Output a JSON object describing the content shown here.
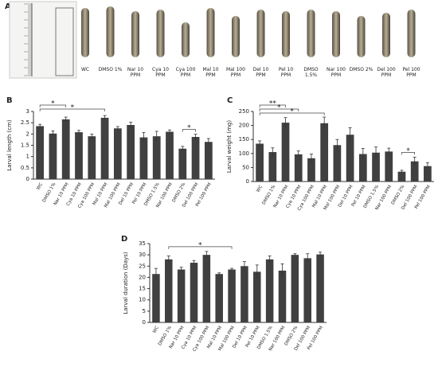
{
  "panel_a": {
    "label": "A",
    "larvae": [
      "WC",
      "DMSO 1%",
      "Nar 10 PPM",
      "Cya 10 PPM",
      "Cya 100 PPM",
      "Mal 10 PPM",
      "Mal 100 PPM",
      "Del 10 PPM",
      "Pel 10 PPM",
      "DMSO 1.5%",
      "Nar 100 PPM",
      "DMSO 2%",
      "Del 100 PPM",
      "Pel 100 PPM"
    ]
  },
  "chart_data": [
    {
      "type": "bar",
      "panel": "B",
      "ylabel": "Larval length (cm)",
      "color": "#404040",
      "categories": [
        "WC",
        "DMSO 1%",
        "Nar 10 PPM",
        "Cya 10 PPM",
        "Cya 100 PPM",
        "Mal 10 PPM",
        "Mal 100 PPM",
        "Del 10 PPM",
        "Pel 10 PPM",
        "DMSO 1.5%",
        "Nar 100 PPM",
        "DMSO 2%",
        "Del 100 PPM",
        "Pel 100 PPM"
      ],
      "values": [
        2.35,
        2.02,
        2.65,
        2.08,
        1.9,
        2.72,
        2.25,
        2.4,
        1.85,
        1.9,
        2.1,
        1.35,
        1.87,
        1.65
      ],
      "errors": [
        0.08,
        0.12,
        0.1,
        0.08,
        0.1,
        0.1,
        0.08,
        0.12,
        0.22,
        0.22,
        0.08,
        0.1,
        0.12,
        0.15
      ],
      "ylim": [
        0,
        3
      ],
      "yticks": [
        0,
        0.5,
        1,
        1.5,
        2,
        2.5,
        3
      ],
      "significance": [
        {
          "from": 0,
          "to": 2,
          "label": "*"
        },
        {
          "from": 0,
          "to": 5,
          "label": "*"
        },
        {
          "from": 11,
          "to": 12,
          "label": "*"
        }
      ]
    },
    {
      "type": "bar",
      "panel": "C",
      "ylabel": "Larval weight (mg)",
      "color": "#404040",
      "categories": [
        "WC",
        "DMSO 1%",
        "Nar 10 PPM",
        "Cya 10 PPM",
        "Cya 100 PPM",
        "Mal 10 PPM",
        "Mal 100 PPM",
        "Del 10 PPM",
        "Pel 10 PPM",
        "DMSO 1.5%",
        "Nar 100 PPM",
        "DMSO 2%",
        "Del 100 PPM",
        "Pel 100 PPM"
      ],
      "values": [
        135,
        105,
        210,
        97,
        83,
        208,
        130,
        167,
        98,
        103,
        107,
        35,
        72,
        55
      ],
      "errors": [
        10,
        15,
        18,
        12,
        15,
        22,
        20,
        25,
        20,
        20,
        12,
        5,
        15,
        12
      ],
      "ylim": [
        0,
        250
      ],
      "yticks": [
        0,
        50,
        100,
        150,
        200,
        250
      ],
      "significance": [
        {
          "from": 0,
          "to": 2,
          "label": "**"
        },
        {
          "from": 0,
          "to": 3,
          "label": "*"
        },
        {
          "from": 0,
          "to": 5,
          "label": "*"
        },
        {
          "from": 11,
          "to": 12,
          "label": "*"
        }
      ]
    },
    {
      "type": "bar",
      "panel": "D",
      "ylabel": "Larval duration (Days)",
      "color": "#404040",
      "categories": [
        "WC",
        "DMSO 1%",
        "Nar 10 PPM",
        "Cya 10 PPM",
        "Cya 100 PPM",
        "Mal 10 PPM",
        "Mal 100 PPM",
        "Del 10 PPM",
        "Pel 10 PPM",
        "DMSO 1.5%",
        "Nar 100 PPM",
        "DMSO 2%",
        "Del 100 PPM",
        "Pel 100 PPM"
      ],
      "values": [
        21.5,
        28,
        23.5,
        26.5,
        30,
        21.5,
        23.5,
        25,
        22.5,
        28,
        23,
        30,
        28.5,
        30.2
      ],
      "errors": [
        2.5,
        1.5,
        1,
        1,
        1.5,
        0.5,
        0.5,
        2,
        3,
        1.5,
        3,
        0.5,
        2,
        1
      ],
      "ylim": [
        0,
        35
      ],
      "yticks": [
        0,
        5,
        10,
        15,
        20,
        25,
        30,
        35
      ],
      "significance": [
        {
          "from": 1,
          "to": 6,
          "label": "*"
        }
      ]
    }
  ]
}
